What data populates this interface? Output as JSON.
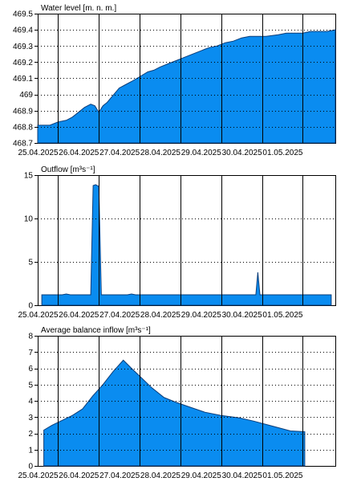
{
  "chart_data": [
    {
      "type": "area",
      "title": "Water level [m. n. m.]",
      "ylim": [
        468.7,
        469.5
      ],
      "yticks": [
        468.7,
        468.8,
        468.9,
        469,
        469.1,
        469.2,
        469.3,
        469.4,
        469.5
      ],
      "ytick_labels": [
        "468.7",
        "468.8",
        "468.9",
        "469",
        "469.1",
        "469.2",
        "469.3",
        "469.4",
        "469.5"
      ],
      "xlim": [
        0,
        7.3
      ],
      "xtick_labels": [
        "25.04.2025",
        "26.04.2025",
        "27.04.2025",
        "28.04.2025",
        "29.04.2025",
        "30.04.2025",
        "01.05.2025"
      ],
      "fill_color": "#0a8cf0",
      "grid": true,
      "series": [
        {
          "x": [
            0,
            0.3,
            0.5,
            0.7,
            0.85,
            1.0,
            1.15,
            1.3,
            1.4,
            1.5,
            1.6,
            1.7,
            1.8,
            1.9,
            2.0,
            2.15,
            2.3,
            2.5,
            2.7,
            2.85,
            3.0,
            3.2,
            3.4,
            3.6,
            3.8,
            4.0,
            4.2,
            4.4,
            4.6,
            4.8,
            5.0,
            5.2,
            5.4,
            5.6,
            5.9,
            6.1,
            6.3,
            6.5,
            6.7,
            6.9,
            7.1,
            7.3
          ],
          "values": [
            468.81,
            468.81,
            468.83,
            468.84,
            468.86,
            468.89,
            468.92,
            468.94,
            468.93,
            468.89,
            468.93,
            468.95,
            468.98,
            469.01,
            469.04,
            469.06,
            469.08,
            469.11,
            469.14,
            469.15,
            469.17,
            469.19,
            469.21,
            469.23,
            469.25,
            469.27,
            469.29,
            469.3,
            469.32,
            469.33,
            469.35,
            469.36,
            469.36,
            469.36,
            469.37,
            469.38,
            469.38,
            469.38,
            469.39,
            469.39,
            469.39,
            469.4
          ]
        }
      ]
    },
    {
      "type": "area",
      "title": "Outflow [m³s⁻¹]",
      "ylim": [
        0,
        15
      ],
      "yticks": [
        0,
        5,
        10,
        15
      ],
      "ytick_labels": [
        "0",
        "5",
        "10",
        "15"
      ],
      "xlim": [
        0,
        7.3
      ],
      "xtick_labels": [
        "25.04.2025",
        "26.04.2025",
        "27.04.2025",
        "28.04.2025",
        "29.04.2025",
        "30.04.2025",
        "01.05.2025"
      ],
      "fill_color": "#0a8cf0",
      "grid": true,
      "series": [
        {
          "x": [
            0.1,
            0.1,
            0.6,
            0.7,
            0.8,
            1.3,
            1.36,
            1.42,
            1.5,
            1.56,
            1.62,
            2.2,
            2.3,
            2.4,
            3.0,
            5.35,
            5.4,
            5.45,
            5.5,
            7.2,
            7.2
          ],
          "values": [
            0,
            1.2,
            1.2,
            1.3,
            1.2,
            1.2,
            13.8,
            13.9,
            13.7,
            1.2,
            1.2,
            1.2,
            1.3,
            1.2,
            1.2,
            1.2,
            3.8,
            1.2,
            1.2,
            1.2,
            0
          ]
        }
      ]
    },
    {
      "type": "area",
      "title": "Average balance inflow  [m³s⁻¹]",
      "ylim": [
        0,
        8
      ],
      "yticks": [
        0,
        1,
        2,
        3,
        4,
        5,
        6,
        7,
        8
      ],
      "ytick_labels": [
        "0",
        "1",
        "2",
        "3",
        "4",
        "5",
        "6",
        "7",
        "8"
      ],
      "xlim": [
        0,
        7.3
      ],
      "xtick_labels": [
        "25.04.2025",
        "26.04.2025",
        "27.04.2025",
        "28.04.2025",
        "29.04.2025",
        "30.04.2025",
        "01.05.2025"
      ],
      "fill_color": "#0a8cf0",
      "grid": true,
      "series": [
        {
          "x": [
            0.15,
            0.15,
            0.35,
            0.6,
            0.85,
            1.1,
            1.35,
            1.6,
            1.85,
            2.1,
            2.3,
            2.55,
            2.8,
            3.1,
            3.4,
            3.75,
            4.1,
            4.5,
            4.95,
            5.3,
            5.75,
            6.2,
            6.55,
            6.55
          ],
          "values": [
            0,
            2.2,
            2.5,
            2.8,
            3.1,
            3.5,
            4.3,
            5.0,
            5.8,
            6.5,
            6.0,
            5.4,
            4.8,
            4.2,
            3.9,
            3.6,
            3.3,
            3.1,
            2.95,
            2.75,
            2.45,
            2.15,
            2.1,
            0
          ]
        }
      ]
    }
  ]
}
